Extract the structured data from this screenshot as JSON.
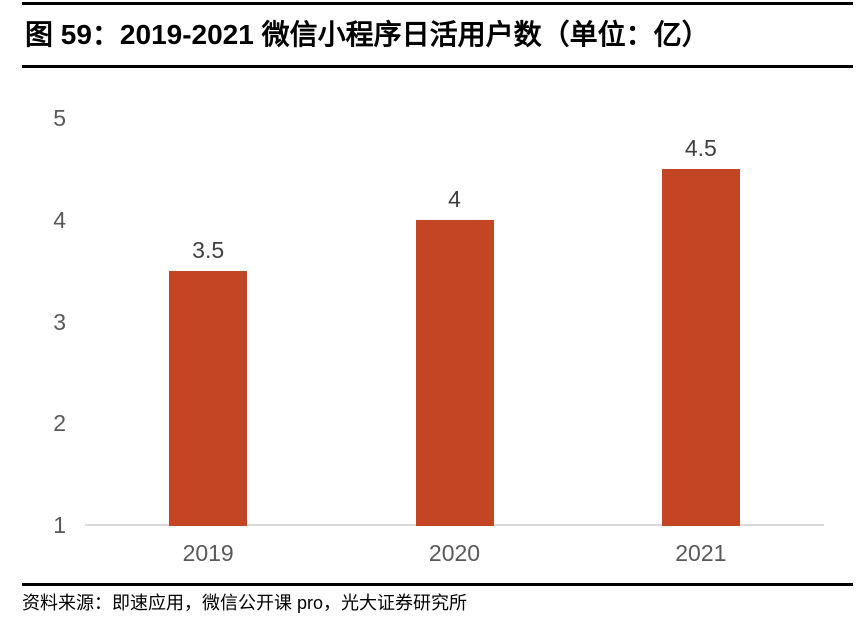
{
  "figure": {
    "number_label": "图 59",
    "title": "图 59：2019-2021 微信小程序日活用户数（单位：亿）",
    "source": "资料来源：即速应用，微信公开课 pro，光大证券研究所"
  },
  "chart_data": {
    "type": "bar",
    "title": "2019-2021 微信小程序日活用户数（单位：亿）",
    "unit": "亿",
    "categories": [
      "2019",
      "2020",
      "2021"
    ],
    "values": [
      3.5,
      4,
      4.5
    ],
    "value_labels": [
      "3.5",
      "4",
      "4.5"
    ],
    "xlabel": "",
    "ylabel": "",
    "ylim": [
      1,
      5
    ],
    "y_ticks": [
      5,
      4,
      3,
      2,
      1
    ],
    "grid": false,
    "legend": false,
    "bar_color": "#C44524"
  },
  "colors": {
    "bar": "#C44524",
    "axis_label": "#595959",
    "value_label": "#404040",
    "baseline": "#D9D9D9",
    "rule": "#000000",
    "background": "#FFFFFF"
  }
}
